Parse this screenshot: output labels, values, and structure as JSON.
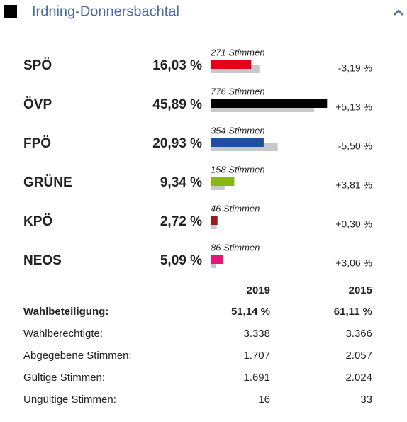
{
  "header": {
    "title": "Irdning-Donnersbachtal"
  },
  "parties": [
    {
      "name": "SPÖ",
      "percent": {
        "value": 16.03,
        "label": "16,03 %"
      },
      "votes": "271 Stimmen",
      "change": "-3,19 %",
      "previous": 19.22,
      "color": "#e2001a"
    },
    {
      "name": "ÖVP",
      "percent": {
        "value": 45.89,
        "label": "45,89 %"
      },
      "votes": "776 Stimmen",
      "change": "+5,13 %",
      "previous": 40.76,
      "color": "#000000"
    },
    {
      "name": "FPÖ",
      "percent": {
        "value": 20.93,
        "label": "20,93 %"
      },
      "votes": "354 Stimmen",
      "change": "-5,50 %",
      "previous": 26.43,
      "color": "#1f4fa0"
    },
    {
      "name": "GRÜNE",
      "percent": {
        "value": 9.34,
        "label": "9,34 %"
      },
      "votes": "158 Stimmen",
      "change": "+3,81 %",
      "previous": 5.53,
      "color": "#88b717"
    },
    {
      "name": "KPÖ",
      "percent": {
        "value": 2.72,
        "label": "2,72 %"
      },
      "votes": "46 Stimmen",
      "change": "+0,30 %",
      "previous": 2.42,
      "color": "#9b1b1b"
    },
    {
      "name": "NEOS",
      "percent": {
        "value": 5.09,
        "label": "5,09 %"
      },
      "votes": "86 Stimmen",
      "change": "+3,06 %",
      "previous": 2.03,
      "color": "#e6177a"
    }
  ],
  "stats": {
    "columns": [
      "2019",
      "2015"
    ],
    "rows": [
      [
        "Wahlbeteiligung:",
        "51,14 %",
        "61,11 %"
      ],
      [
        "Wahlberechtigte:",
        "3.338",
        "3.366"
      ],
      [
        "Abgegebene Stimmen:",
        "1.707",
        "2.057"
      ],
      [
        "Gültige Stimmen:",
        "1.691",
        "2.024"
      ],
      [
        "Ungültige Stimmen:",
        "16",
        "33"
      ]
    ]
  }
}
